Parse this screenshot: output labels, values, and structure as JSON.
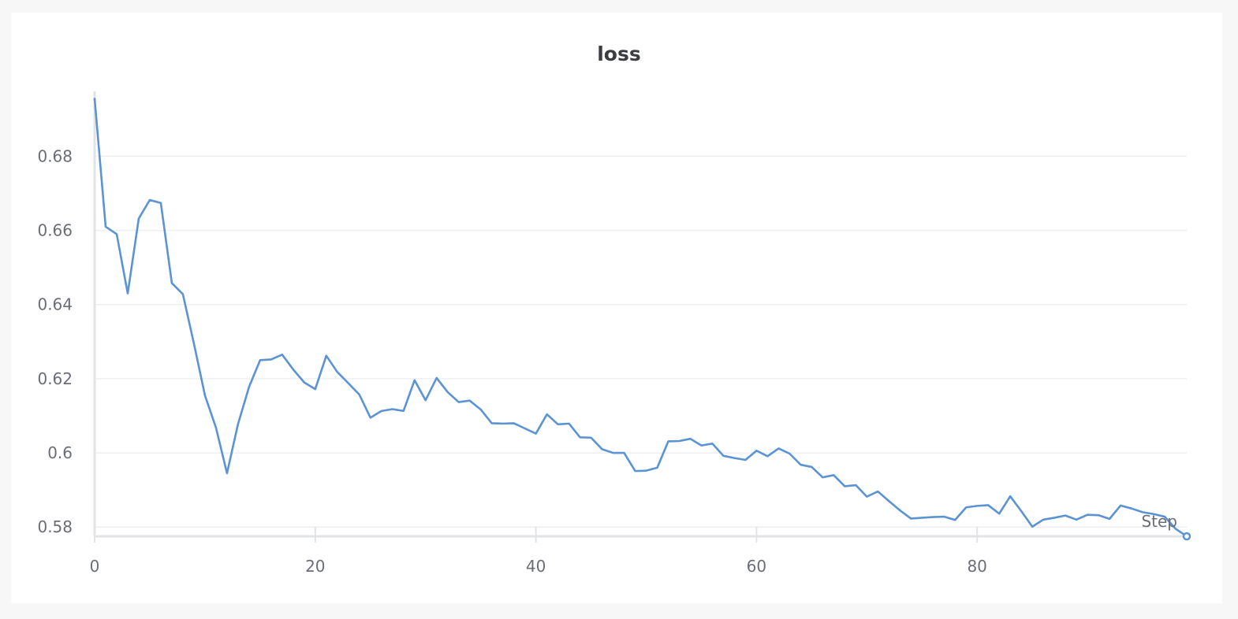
{
  "chart_data": {
    "type": "line",
    "title": "loss",
    "xlabel": "Step",
    "ylabel": "",
    "xlim": [
      0,
      99
    ],
    "ylim": [
      0.5775,
      0.6975
    ],
    "x_ticks": [
      0,
      20,
      40,
      60,
      80
    ],
    "x_tick_labels": [
      "0",
      "20",
      "40",
      "60",
      "80"
    ],
    "y_ticks": [
      0.58,
      0.6,
      0.62,
      0.64,
      0.66,
      0.68
    ],
    "y_tick_labels": [
      "0.58",
      "0.6",
      "0.62",
      "0.64",
      "0.66",
      "0.68"
    ],
    "grid": true,
    "line_color": "#5b93d3",
    "series": [
      {
        "x": [
          0,
          1,
          2,
          3,
          4,
          5,
          6,
          7,
          8,
          9,
          10,
          11,
          12,
          13,
          14,
          15,
          16,
          17,
          18,
          19,
          20,
          21,
          22,
          23,
          24,
          25,
          26,
          27,
          28,
          29,
          30,
          31,
          32,
          33,
          34,
          35,
          36,
          37,
          38,
          39,
          40,
          41,
          42,
          43,
          44,
          45,
          46,
          47,
          48,
          49,
          50,
          51,
          52,
          53,
          54,
          55,
          56,
          57,
          58,
          59,
          60,
          61,
          62,
          63,
          64,
          65,
          66,
          67,
          68,
          69,
          70,
          71,
          72,
          73,
          74,
          75,
          76,
          77,
          78,
          79,
          80,
          81,
          82,
          83,
          84,
          85,
          86,
          87,
          88,
          89,
          90,
          91,
          92,
          93,
          94,
          95,
          96,
          97,
          98,
          99
        ],
        "y": [
          0.6955,
          0.661,
          0.659,
          0.643,
          0.6632,
          0.6682,
          0.6674,
          0.6458,
          0.6428,
          0.6295,
          0.6155,
          0.6068,
          0.5945,
          0.6078,
          0.6178,
          0.625,
          0.6252,
          0.6265,
          0.6225,
          0.619,
          0.6172,
          0.6262,
          0.6218,
          0.6188,
          0.6157,
          0.6095,
          0.6113,
          0.6118,
          0.6113,
          0.6196,
          0.6142,
          0.6202,
          0.6164,
          0.6137,
          0.6141,
          0.6117,
          0.608,
          0.6079,
          0.608,
          0.6066,
          0.6052,
          0.6104,
          0.6077,
          0.6079,
          0.6042,
          0.6041,
          0.601,
          0.6,
          0.6,
          0.5951,
          0.5952,
          0.596,
          0.6031,
          0.6032,
          0.6038,
          0.602,
          0.6025,
          0.5992,
          0.5986,
          0.5981,
          0.6006,
          0.5991,
          0.6012,
          0.5998,
          0.5968,
          0.5962,
          0.5934,
          0.594,
          0.591,
          0.5913,
          0.5882,
          0.5896,
          0.587,
          0.5845,
          0.5823,
          0.5825,
          0.5827,
          0.5828,
          0.5819,
          0.5853,
          0.5857,
          0.5859,
          0.5836,
          0.5883,
          0.5843,
          0.5801,
          0.582,
          0.5825,
          0.5831,
          0.582,
          0.5833,
          0.5832,
          0.5822,
          0.5858,
          0.585,
          0.584,
          0.5835,
          0.5828,
          0.5795,
          0.5775
        ]
      }
    ]
  }
}
